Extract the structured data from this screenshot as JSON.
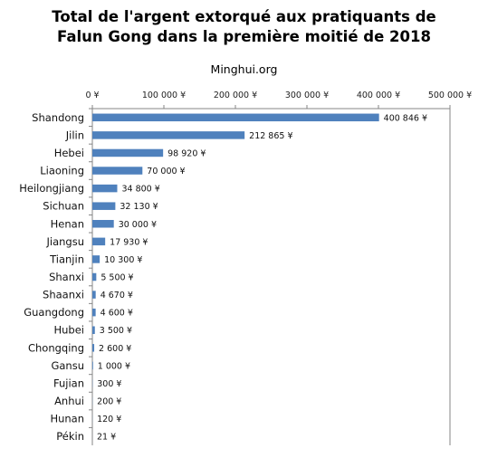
{
  "header": {
    "title_line1": "Total de l'argent extorqué aux pratiquants de",
    "title_line2": "Falun Gong dans la première moitié de 2018",
    "source": "Minghui.org"
  },
  "colors": {
    "bar": "#4f81bd",
    "axis": "#868686"
  },
  "chart_data": {
    "type": "bar",
    "orientation": "horizontal",
    "title": "Total de l'argent extorqué aux pratiquants de Falun Gong dans la première moitié de 2018",
    "subtitle": "Minghui.org",
    "xlim": [
      0,
      500000
    ],
    "x_ticks": [
      0,
      100000,
      200000,
      300000,
      400000,
      500000
    ],
    "x_tick_labels": [
      "0 ¥",
      "100 000 ¥",
      "200 000 ¥",
      "300 000 ¥",
      "400 000 ¥",
      "500 000 ¥"
    ],
    "x_axis_position": "top",
    "grid": false,
    "legend": "none",
    "categories": [
      "Shandong",
      "Jilin",
      "Hebei",
      "Liaoning",
      "Heilongjiang",
      "Sichuan",
      "Henan",
      "Jiangsu",
      "Tianjin",
      "Shanxi",
      "Shaanxi",
      "Guangdong",
      "Hubei",
      "Chongqing",
      "Gansu",
      "Fujian",
      "Anhui",
      "Hunan",
      "Pékin"
    ],
    "values": [
      400846,
      212865,
      98920,
      70000,
      34800,
      32130,
      30000,
      17930,
      10300,
      5500,
      4670,
      4600,
      3500,
      2600,
      1000,
      300,
      200,
      120,
      21
    ],
    "value_labels": [
      "400 846 ¥",
      "212 865 ¥",
      "98 920 ¥",
      "70 000 ¥",
      "34 800 ¥",
      "32 130 ¥",
      "30 000 ¥",
      "17 930 ¥",
      "10 300 ¥",
      "5 500 ¥",
      "4 670 ¥",
      "4 600 ¥",
      "3 500 ¥",
      "2 600 ¥",
      "1 000 ¥",
      "300 ¥",
      "200 ¥",
      "120 ¥",
      "21 ¥"
    ]
  }
}
